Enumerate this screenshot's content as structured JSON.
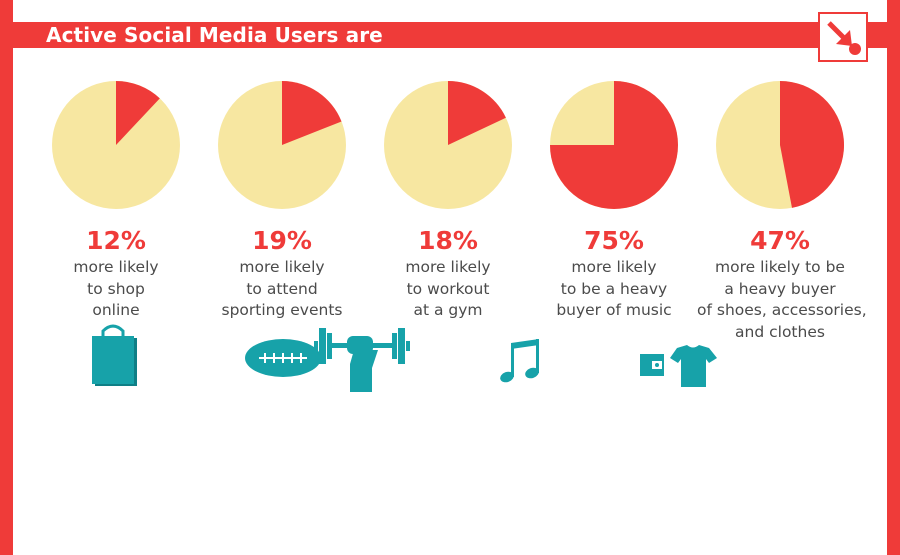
{
  "header": {
    "title": "Active Social Media Users are"
  },
  "badge_icon": "arrow-down-right-icon",
  "colors": {
    "accent": "#ef3b39",
    "pie_base": "#f7e7a1",
    "icon": "#17a2a9",
    "text": "#4b4b4b"
  },
  "chart_data": {
    "type": "pie",
    "title": "Active Social Media Users are",
    "items": [
      {
        "value": 12,
        "label": "12%",
        "lines": [
          "more likely",
          "to shop",
          "online"
        ],
        "icon": "shopping-bag-icon"
      },
      {
        "value": 19,
        "label": "19%",
        "lines": [
          "more likely",
          "to attend",
          "sporting events"
        ],
        "icon": "football-icon"
      },
      {
        "value": 18,
        "label": "18%",
        "lines": [
          "more likely",
          "to workout",
          "at a gym"
        ],
        "icon": "barbell-icon"
      },
      {
        "value": 75,
        "label": "75%",
        "lines": [
          "more likely",
          "to be a heavy",
          "buyer of music"
        ],
        "icon": "music-note-icon"
      },
      {
        "value": 47,
        "label": "47%",
        "lines": [
          "more likely to be",
          "a heavy buyer",
          "of shoes, accessories,",
          "and clothes"
        ],
        "icon": "wallet-shirt-icon"
      }
    ]
  }
}
